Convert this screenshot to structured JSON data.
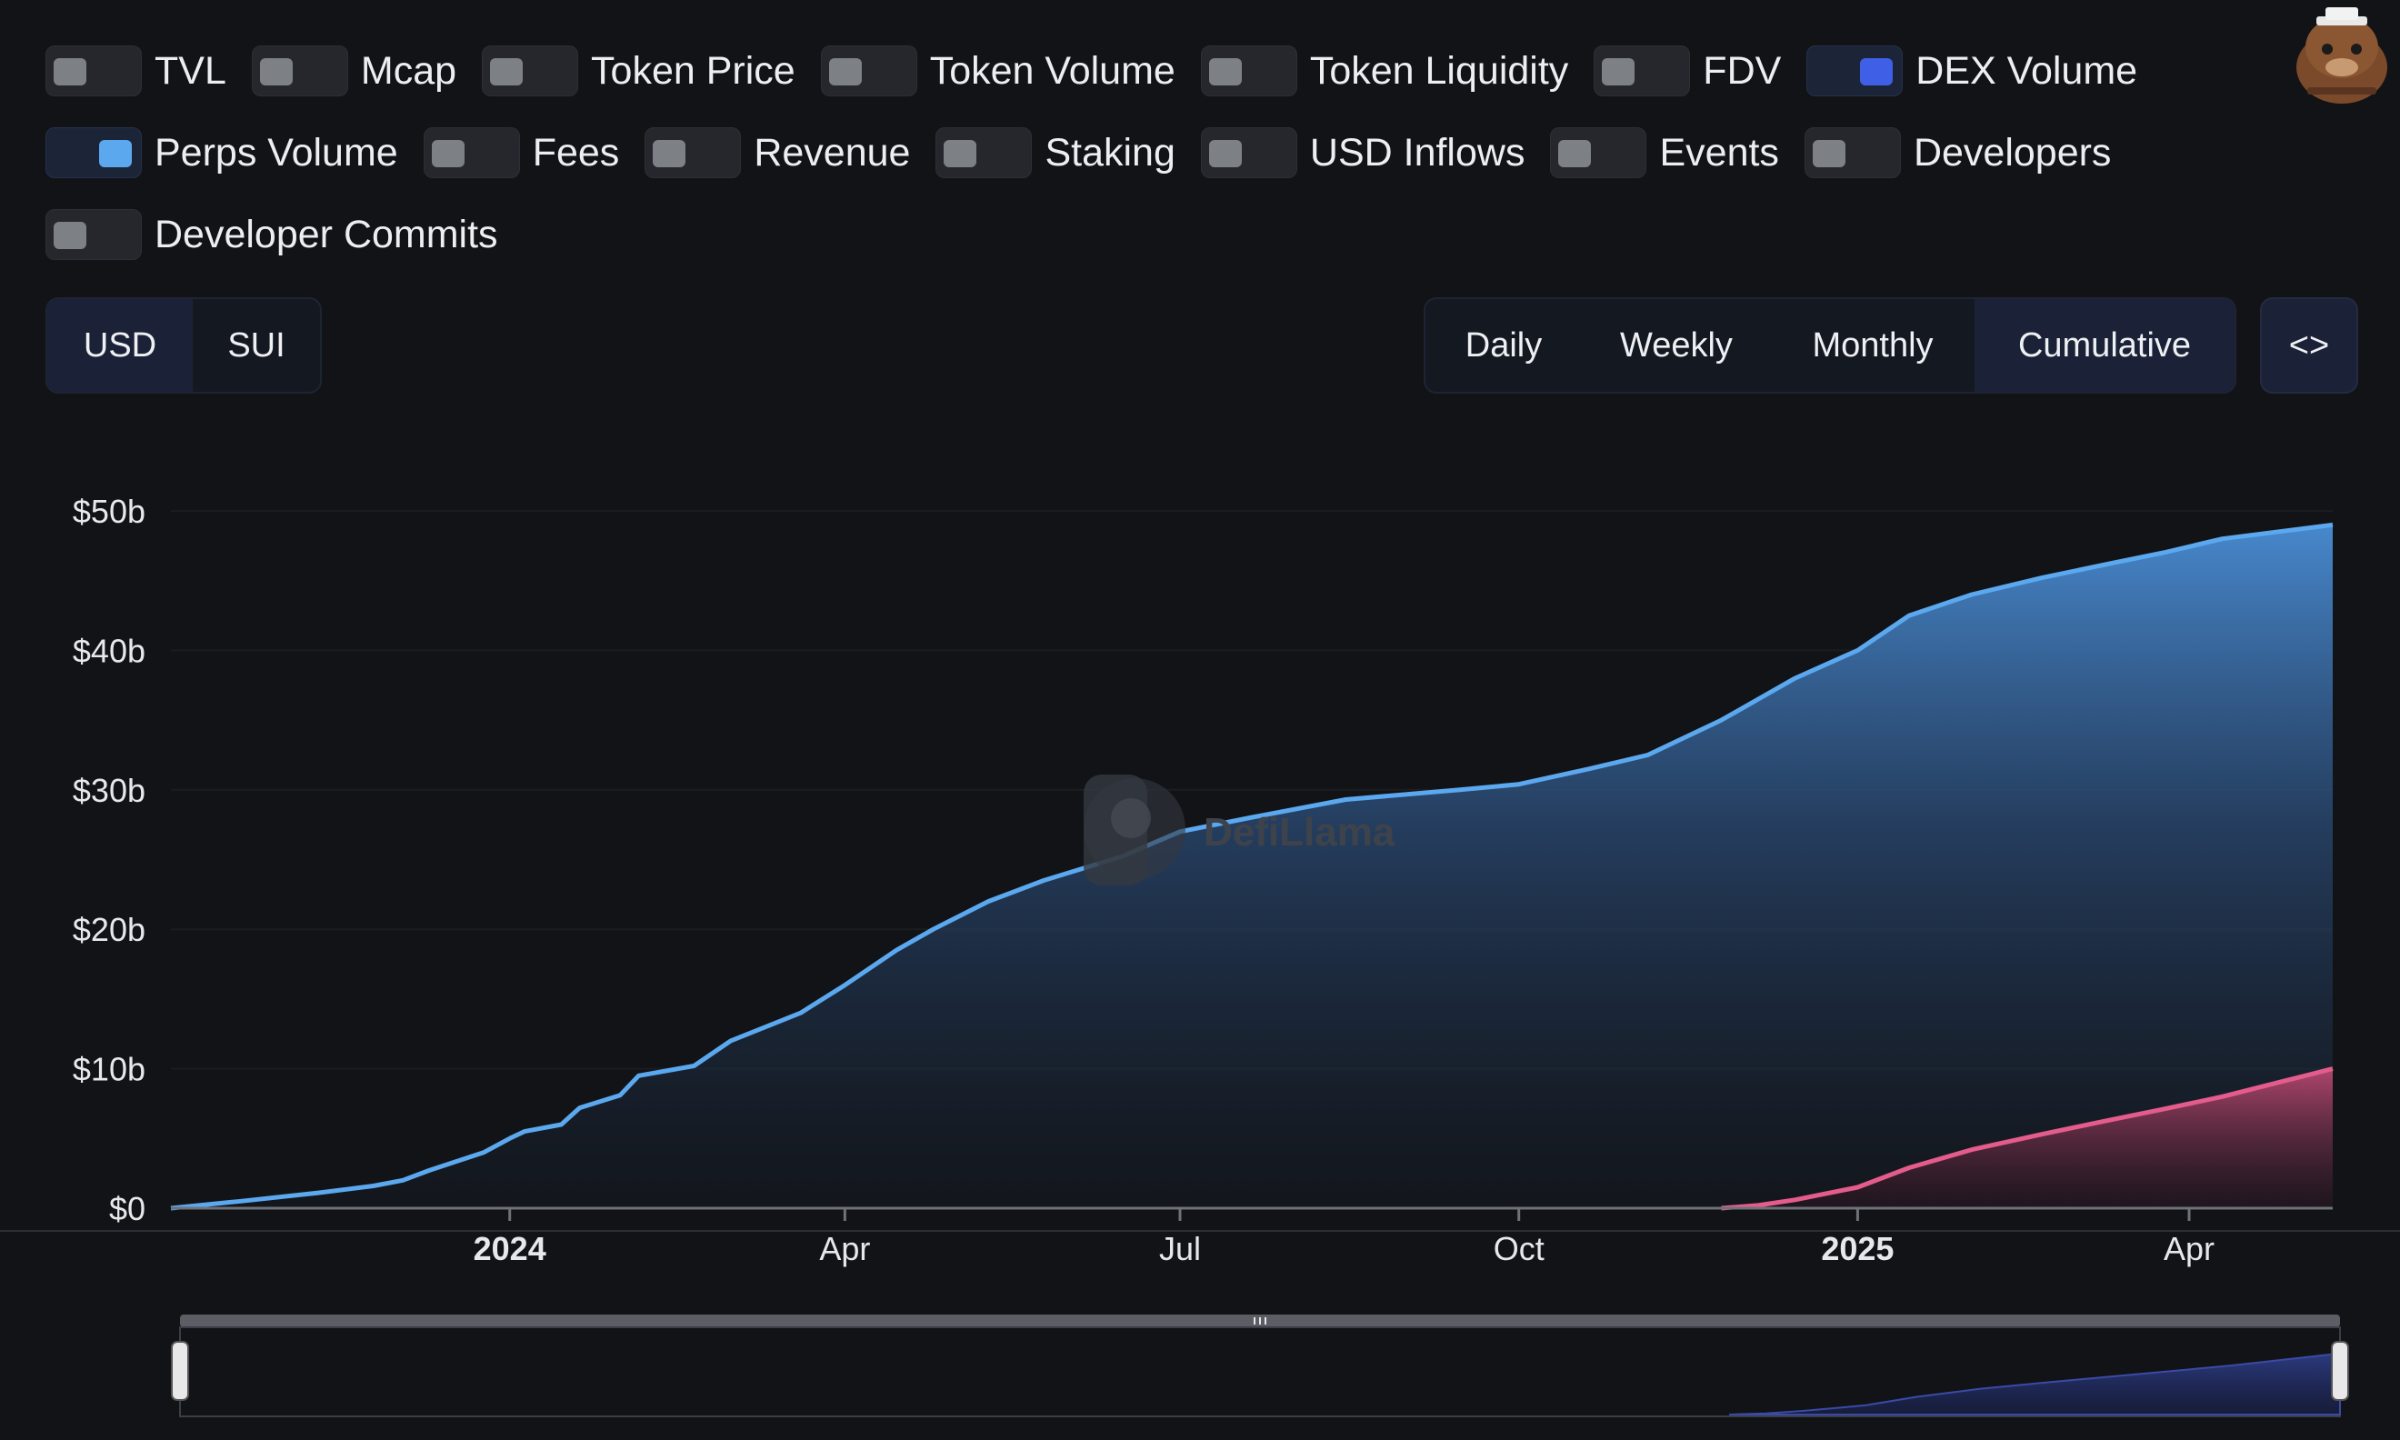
{
  "toggles": {
    "row1": [
      {
        "label": "TVL",
        "on": false
      },
      {
        "label": "Mcap",
        "on": false
      },
      {
        "label": "Token Price",
        "on": false
      },
      {
        "label": "Token Volume",
        "on": false
      },
      {
        "label": "Token Liquidity",
        "on": false
      },
      {
        "label": "FDV",
        "on": false
      },
      {
        "label": "DEX Volume",
        "on": true,
        "color": "#3f5fe6"
      }
    ],
    "row2": [
      {
        "label": "Perps Volume",
        "on": true,
        "color": "#5ba8ef"
      },
      {
        "label": "Fees",
        "on": false
      },
      {
        "label": "Revenue",
        "on": false
      },
      {
        "label": "Staking",
        "on": false
      },
      {
        "label": "USD Inflows",
        "on": false
      },
      {
        "label": "Events",
        "on": false
      },
      {
        "label": "Developers",
        "on": false
      }
    ],
    "row3": [
      {
        "label": "Developer Commits",
        "on": false
      }
    ]
  },
  "currency": {
    "options": [
      "USD",
      "SUI"
    ],
    "selected": "USD"
  },
  "interval": {
    "options": [
      "Daily",
      "Weekly",
      "Monthly",
      "Cumulative"
    ],
    "selected": "Cumulative"
  },
  "embed_label": "<>",
  "watermark": "DefiLlama",
  "chart_data": {
    "type": "area",
    "cumulative": true,
    "x_range": [
      "2023-10-01",
      "2025-05-10"
    ],
    "y_range": [
      0,
      50
    ],
    "y_unit": "billion USD",
    "y_ticks": [
      {
        "v": 0,
        "label": "$0"
      },
      {
        "v": 10,
        "label": "$10b"
      },
      {
        "v": 20,
        "label": "$20b"
      },
      {
        "v": 30,
        "label": "$30b"
      },
      {
        "v": 40,
        "label": "$40b"
      },
      {
        "v": 50,
        "label": "$50b"
      }
    ],
    "x_ticks": [
      {
        "date": "2024-01-01",
        "label": "2024",
        "bold": true
      },
      {
        "date": "2024-04-01",
        "label": "Apr",
        "bold": false
      },
      {
        "date": "2024-07-01",
        "label": "Jul",
        "bold": false
      },
      {
        "date": "2024-10-01",
        "label": "Oct",
        "bold": false
      },
      {
        "date": "2025-01-01",
        "label": "2025",
        "bold": true
      },
      {
        "date": "2025-04-01",
        "label": "Apr",
        "bold": false
      }
    ],
    "grid": false,
    "series": [
      {
        "color": "#5ba8ef",
        "points": [
          [
            "2023-10-01",
            0
          ],
          [
            "2023-10-20",
            0.5
          ],
          [
            "2023-11-10",
            1.1
          ],
          [
            "2023-11-25",
            1.6
          ],
          [
            "2023-12-03",
            2.0
          ],
          [
            "2023-12-10",
            2.7
          ],
          [
            "2023-12-25",
            4.0
          ],
          [
            "2024-01-01",
            5.0
          ],
          [
            "2024-01-05",
            5.5
          ],
          [
            "2024-01-15",
            6.0
          ],
          [
            "2024-01-20",
            7.2
          ],
          [
            "2024-01-31",
            8.1
          ],
          [
            "2024-02-05",
            9.5
          ],
          [
            "2024-02-20",
            10.2
          ],
          [
            "2024-03-01",
            12.0
          ],
          [
            "2024-03-20",
            14.0
          ],
          [
            "2024-04-01",
            16.0
          ],
          [
            "2024-04-15",
            18.5
          ],
          [
            "2024-04-25",
            20.0
          ],
          [
            "2024-05-10",
            22.0
          ],
          [
            "2024-05-25",
            23.5
          ],
          [
            "2024-06-15",
            25.2
          ],
          [
            "2024-07-01",
            27.0
          ],
          [
            "2024-07-20",
            28.0
          ],
          [
            "2024-08-15",
            29.3
          ],
          [
            "2024-09-15",
            30.0
          ],
          [
            "2024-10-01",
            30.4
          ],
          [
            "2024-10-20",
            31.5
          ],
          [
            "2024-11-05",
            32.5
          ],
          [
            "2024-11-25",
            35.0
          ],
          [
            "2024-12-15",
            38.0
          ],
          [
            "2025-01-01",
            40.0
          ],
          [
            "2025-01-15",
            42.5
          ],
          [
            "2025-02-01",
            44.0
          ],
          [
            "2025-02-20",
            45.2
          ],
          [
            "2025-03-10",
            46.2
          ],
          [
            "2025-03-25",
            47.0
          ],
          [
            "2025-04-10",
            48.0
          ],
          [
            "2025-05-10",
            49.0
          ]
        ]
      },
      {
        "color": "#e45c8b",
        "points": [
          [
            "2024-11-25",
            0
          ],
          [
            "2024-12-05",
            0.2
          ],
          [
            "2024-12-15",
            0.6
          ],
          [
            "2025-01-01",
            1.5
          ],
          [
            "2025-01-15",
            2.9
          ],
          [
            "2025-02-01",
            4.2
          ],
          [
            "2025-02-20",
            5.3
          ],
          [
            "2025-03-10",
            6.3
          ],
          [
            "2025-03-25",
            7.1
          ],
          [
            "2025-04-10",
            8.0
          ],
          [
            "2025-04-25",
            9.0
          ],
          [
            "2025-05-10",
            10.0
          ]
        ]
      }
    ]
  }
}
